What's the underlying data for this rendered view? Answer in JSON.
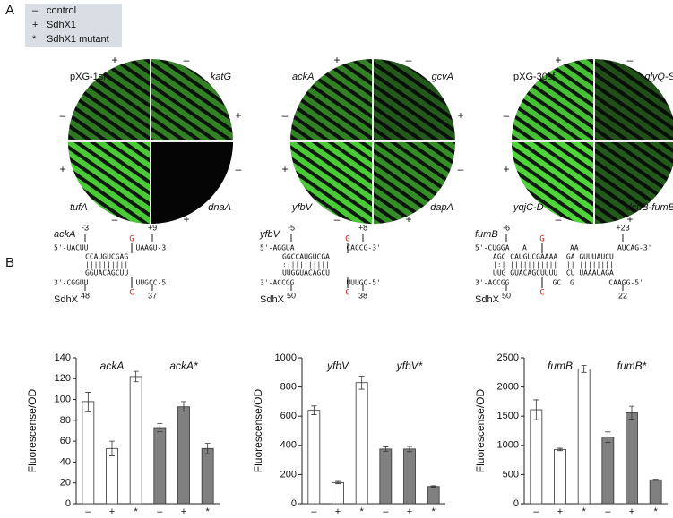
{
  "panels": [
    "A",
    "B"
  ],
  "legend": [
    {
      "symbol": "–",
      "label": "control"
    },
    {
      "symbol": "+",
      "label": "SdhX1"
    },
    {
      "symbol": "*",
      "label": "SdhX1 mutant"
    }
  ],
  "plates": [
    {
      "labels": [
        "pXG-1sf",
        "katG",
        "tufA",
        "dnaA"
      ],
      "signs": [
        "+",
        "–",
        "–",
        "+",
        "+",
        "–",
        "–",
        "+"
      ]
    },
    {
      "labels": [
        "ackA",
        "gcvA",
        "yfbV",
        "dapA"
      ],
      "signs": [
        "+",
        "–",
        "–",
        "+",
        "+",
        "–",
        "–",
        "+"
      ]
    },
    {
      "labels": [
        "pXG-30sf",
        "glyQ-S",
        "yqjC-D",
        "dcuB-fumB"
      ],
      "signs": [
        "+",
        "–",
        "–",
        "+",
        "+",
        "–",
        "–",
        "+"
      ]
    }
  ],
  "pairings": [
    {
      "gene": "ackA",
      "start": "-3",
      "end": "+9",
      "mutation_top": "G",
      "mutation_bottom": "C",
      "rows": [
        "5'-UACUU           UAAGU-3'",
        "CCAUGUCGAG",
        "||||||||||",
        "GGUACAGCUU",
        "3'-CGGUU           UUGCC-5'"
      ],
      "rna": "SdhX",
      "rna_start": "48",
      "rna_end": "37"
    },
    {
      "gene": "yfbV",
      "start": "-5",
      "end": "+8",
      "mutation_top": "G",
      "mutation_bottom": "C",
      "rows": [
        "5'-AGGUA            CACCG-3'",
        "GGCCAUGUCGA",
        "::|||||||||",
        "UUGGUACAGCU",
        "3'-ACCGG            UUUGC-5'"
      ],
      "rna": "SdhX",
      "rna_start": "50",
      "rna_end": "38"
    },
    {
      "gene": "fumB",
      "start": "-6",
      "end": "+23",
      "mutation_top": "G",
      "mutation_bottom": "C",
      "rows": [
        "5'-CUGGA   A          AA         AUCAG-3'",
        "AGC CAUGUCGAAAA  GA GUUUAUCU",
        "|:| |||||||||||  || ||||||||",
        "UUG GUACAGCUUUU  CU UAAAUAGA",
        "3'-ACCGG          GC  G        CAAGG-5'"
      ],
      "rna": "SdhX",
      "rna_start": "50",
      "rna_end": "22"
    }
  ],
  "chart_data": [
    {
      "type": "bar",
      "y_label": "Fluorescense/OD",
      "annotations": [
        "ackA",
        "ackA*"
      ],
      "categories": [
        "–",
        "+",
        "*",
        "–",
        "+",
        "*"
      ],
      "values": [
        98,
        53,
        122,
        73,
        93,
        53
      ],
      "errors": [
        9,
        7,
        5,
        4,
        5,
        5
      ],
      "colors": [
        "#ffffff",
        "#ffffff",
        "#ffffff",
        "#808080",
        "#808080",
        "#808080"
      ],
      "ylim": [
        0,
        140
      ],
      "yticks": [
        0,
        20,
        40,
        60,
        80,
        100,
        120,
        140
      ]
    },
    {
      "type": "bar",
      "y_label": "Fluorescense/OD",
      "annotations": [
        "yfbV",
        "yfbV*"
      ],
      "categories": [
        "–",
        "+",
        "*",
        "–",
        "+",
        "*"
      ],
      "values": [
        640,
        145,
        830,
        375,
        375,
        118
      ],
      "errors": [
        30,
        8,
        45,
        15,
        18,
        5
      ],
      "colors": [
        "#ffffff",
        "#ffffff",
        "#ffffff",
        "#808080",
        "#808080",
        "#808080"
      ],
      "ylim": [
        0,
        1000
      ],
      "yticks": [
        0,
        200,
        400,
        600,
        800,
        1000
      ]
    },
    {
      "type": "bar",
      "y_label": "Fluorescense/OD",
      "annotations": [
        "fumB",
        "fumB*"
      ],
      "categories": [
        "–",
        "+",
        "*",
        "–",
        "+",
        "*"
      ],
      "values": [
        1610,
        930,
        2310,
        1140,
        1560,
        410
      ],
      "errors": [
        170,
        20,
        60,
        90,
        110,
        10
      ],
      "colors": [
        "#ffffff",
        "#ffffff",
        "#ffffff",
        "#808080",
        "#808080",
        "#808080"
      ],
      "ylim": [
        0,
        2500
      ],
      "yticks": [
        0,
        500,
        1000,
        1500,
        2000,
        2500
      ]
    }
  ]
}
